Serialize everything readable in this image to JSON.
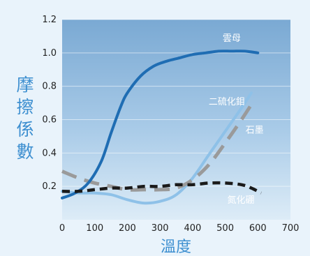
{
  "chart_data": {
    "type": "line",
    "xlabel": "溫度",
    "ylabel": "摩擦係數",
    "xlim": [
      0,
      700
    ],
    "ylim": [
      0,
      1.2
    ],
    "x_ticks": [
      "0",
      "100",
      "200",
      "300",
      "400",
      "500",
      "600",
      "700"
    ],
    "y_ticks": [
      "0.2",
      "0.4",
      "0.6",
      "0.8",
      "1.0",
      "1.2"
    ],
    "grid": true,
    "series": [
      {
        "name": "雲母",
        "color": "#1f6db3",
        "style": "solid",
        "x": [
          0,
          40,
          80,
          120,
          150,
          180,
          200,
          240,
          280,
          320,
          360,
          400,
          440,
          480,
          520,
          560,
          600
        ],
        "y": [
          0.13,
          0.16,
          0.22,
          0.35,
          0.52,
          0.68,
          0.76,
          0.86,
          0.92,
          0.95,
          0.97,
          0.99,
          1.0,
          1.01,
          1.01,
          1.01,
          1.0
        ]
      },
      {
        "name": "二硫化鉬",
        "color": "#8ec1e8",
        "style": "solid",
        "x": [
          0,
          50,
          100,
          150,
          200,
          250,
          300,
          350,
          400,
          450,
          500,
          550,
          580
        ],
        "y": [
          0.17,
          0.16,
          0.16,
          0.15,
          0.12,
          0.1,
          0.11,
          0.15,
          0.25,
          0.39,
          0.53,
          0.67,
          0.76
        ]
      },
      {
        "name": "石墨",
        "color": "#9a9a9a",
        "style": "dashed",
        "x": [
          0,
          50,
          100,
          150,
          200,
          250,
          300,
          350,
          400,
          450,
          500,
          550,
          590
        ],
        "y": [
          0.29,
          0.25,
          0.22,
          0.2,
          0.18,
          0.18,
          0.18,
          0.19,
          0.24,
          0.33,
          0.46,
          0.6,
          0.72
        ]
      },
      {
        "name": "氮化硼",
        "color": "#1a1a1a",
        "style": "dashed",
        "x": [
          0,
          50,
          100,
          150,
          200,
          250,
          300,
          350,
          400,
          450,
          500,
          550,
          580,
          610
        ],
        "y": [
          0.17,
          0.17,
          0.18,
          0.19,
          0.19,
          0.2,
          0.2,
          0.21,
          0.21,
          0.22,
          0.22,
          0.21,
          0.19,
          0.16
        ]
      }
    ]
  }
}
